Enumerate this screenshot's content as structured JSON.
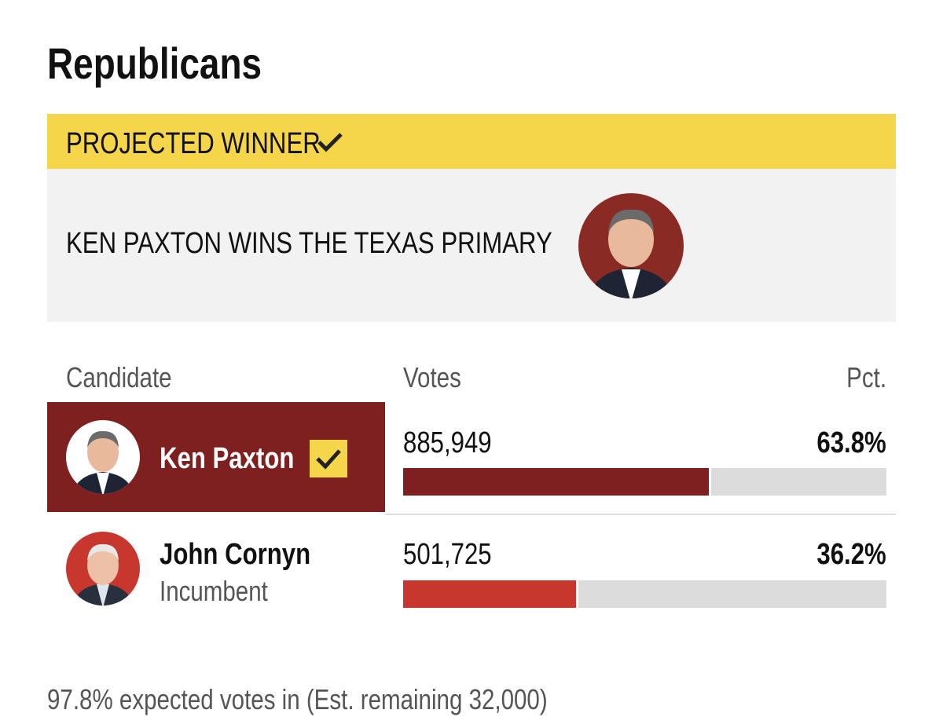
{
  "title": "Republicans",
  "banner": "PROJECTED WINNER",
  "winner_text": "KEN PAXTON WINS THE TEXAS PRIMARY",
  "table": {
    "headers": [
      "Candidate",
      "Votes",
      "Pct."
    ],
    "rows": [
      {
        "name": "Ken Paxton",
        "votes": "885,949",
        "pct": {
          "value": 63.8,
          "label": "63.8%"
        },
        "color": "#7f2020"
      },
      {
        "name": "John Cornyn",
        "note": "Incumbent",
        "votes": "501,725",
        "pct": {
          "value": 36.2,
          "label": "36.2%"
        },
        "color": "#c8372d"
      }
    ]
  },
  "footer": "97.8% expected votes in (Est. remaining 32,000)"
}
